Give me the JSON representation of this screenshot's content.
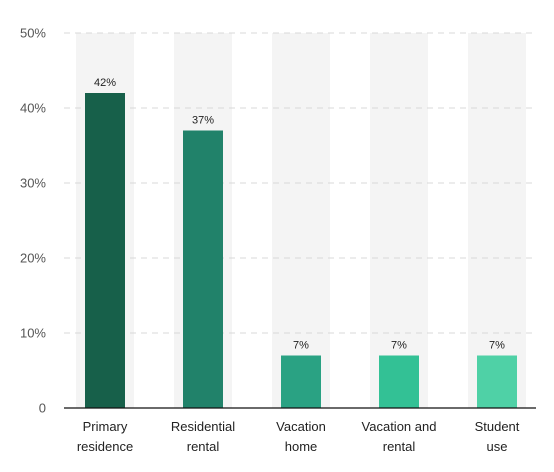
{
  "chart_data": {
    "type": "bar",
    "categories": [
      [
        "Primary",
        "residence"
      ],
      [
        "Residential",
        "rental"
      ],
      [
        "Vacation",
        "home"
      ],
      [
        "Vacation and",
        "rental"
      ],
      [
        "Student",
        "use"
      ]
    ],
    "values": [
      42,
      37,
      7,
      7,
      7
    ],
    "data_labels": [
      "42%",
      "37%",
      "7%",
      "7%",
      "7%"
    ],
    "yticks": [
      "0",
      "10%",
      "20%",
      "30%",
      "40%",
      "50%"
    ],
    "ylim": [
      0,
      50
    ],
    "grid": true,
    "colors": [
      "#17604a",
      "#21826a",
      "#2aa283",
      "#33c195",
      "#4fd1a6"
    ],
    "background_band_color": "#f4f4f4",
    "grid_color": "#d9d9d9",
    "axis_color": "#111111"
  }
}
